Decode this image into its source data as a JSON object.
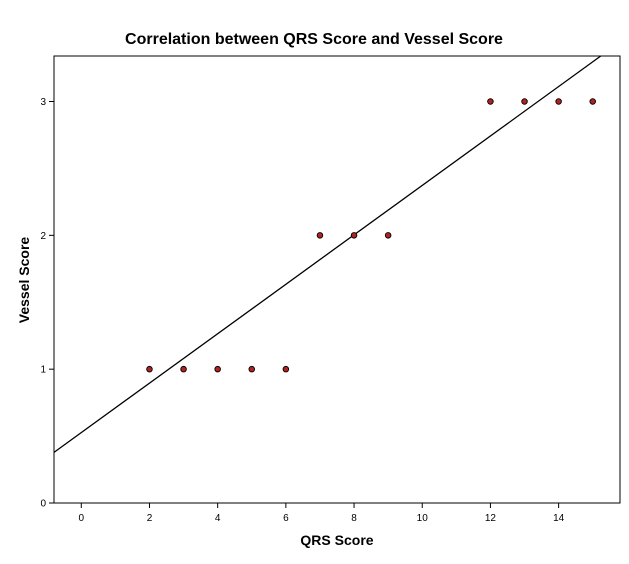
{
  "chart_data": {
    "type": "scatter",
    "title": "Correlation between QRS Score and Vessel Score",
    "xlabel": "QRS Score",
    "ylabel": "Vessel Score",
    "xlim": [
      -0.8,
      15.8
    ],
    "ylim": [
      0,
      3.34
    ],
    "xticks": [
      0,
      2,
      4,
      6,
      8,
      10,
      12,
      14
    ],
    "yticks": [
      0,
      1,
      2,
      3
    ],
    "grid": false,
    "legend": "none",
    "series": [
      {
        "points": [
          {
            "x": 2,
            "y": 1
          },
          {
            "x": 3,
            "y": 1
          },
          {
            "x": 4,
            "y": 1
          },
          {
            "x": 5,
            "y": 1
          },
          {
            "x": 6,
            "y": 1
          },
          {
            "x": 7,
            "y": 2
          },
          {
            "x": 8,
            "y": 2
          },
          {
            "x": 9,
            "y": 2
          },
          {
            "x": 12,
            "y": 3
          },
          {
            "x": 13,
            "y": 3
          },
          {
            "x": 14,
            "y": 3
          },
          {
            "x": 15,
            "y": 3
          }
        ]
      }
    ],
    "fit_line": {
      "intercept": 0.526,
      "slope": 0.1847
    },
    "colors": {
      "marker_fill": "#b22222",
      "marker_stroke": "#000000",
      "line": "#000000",
      "frame": "#000000"
    }
  }
}
